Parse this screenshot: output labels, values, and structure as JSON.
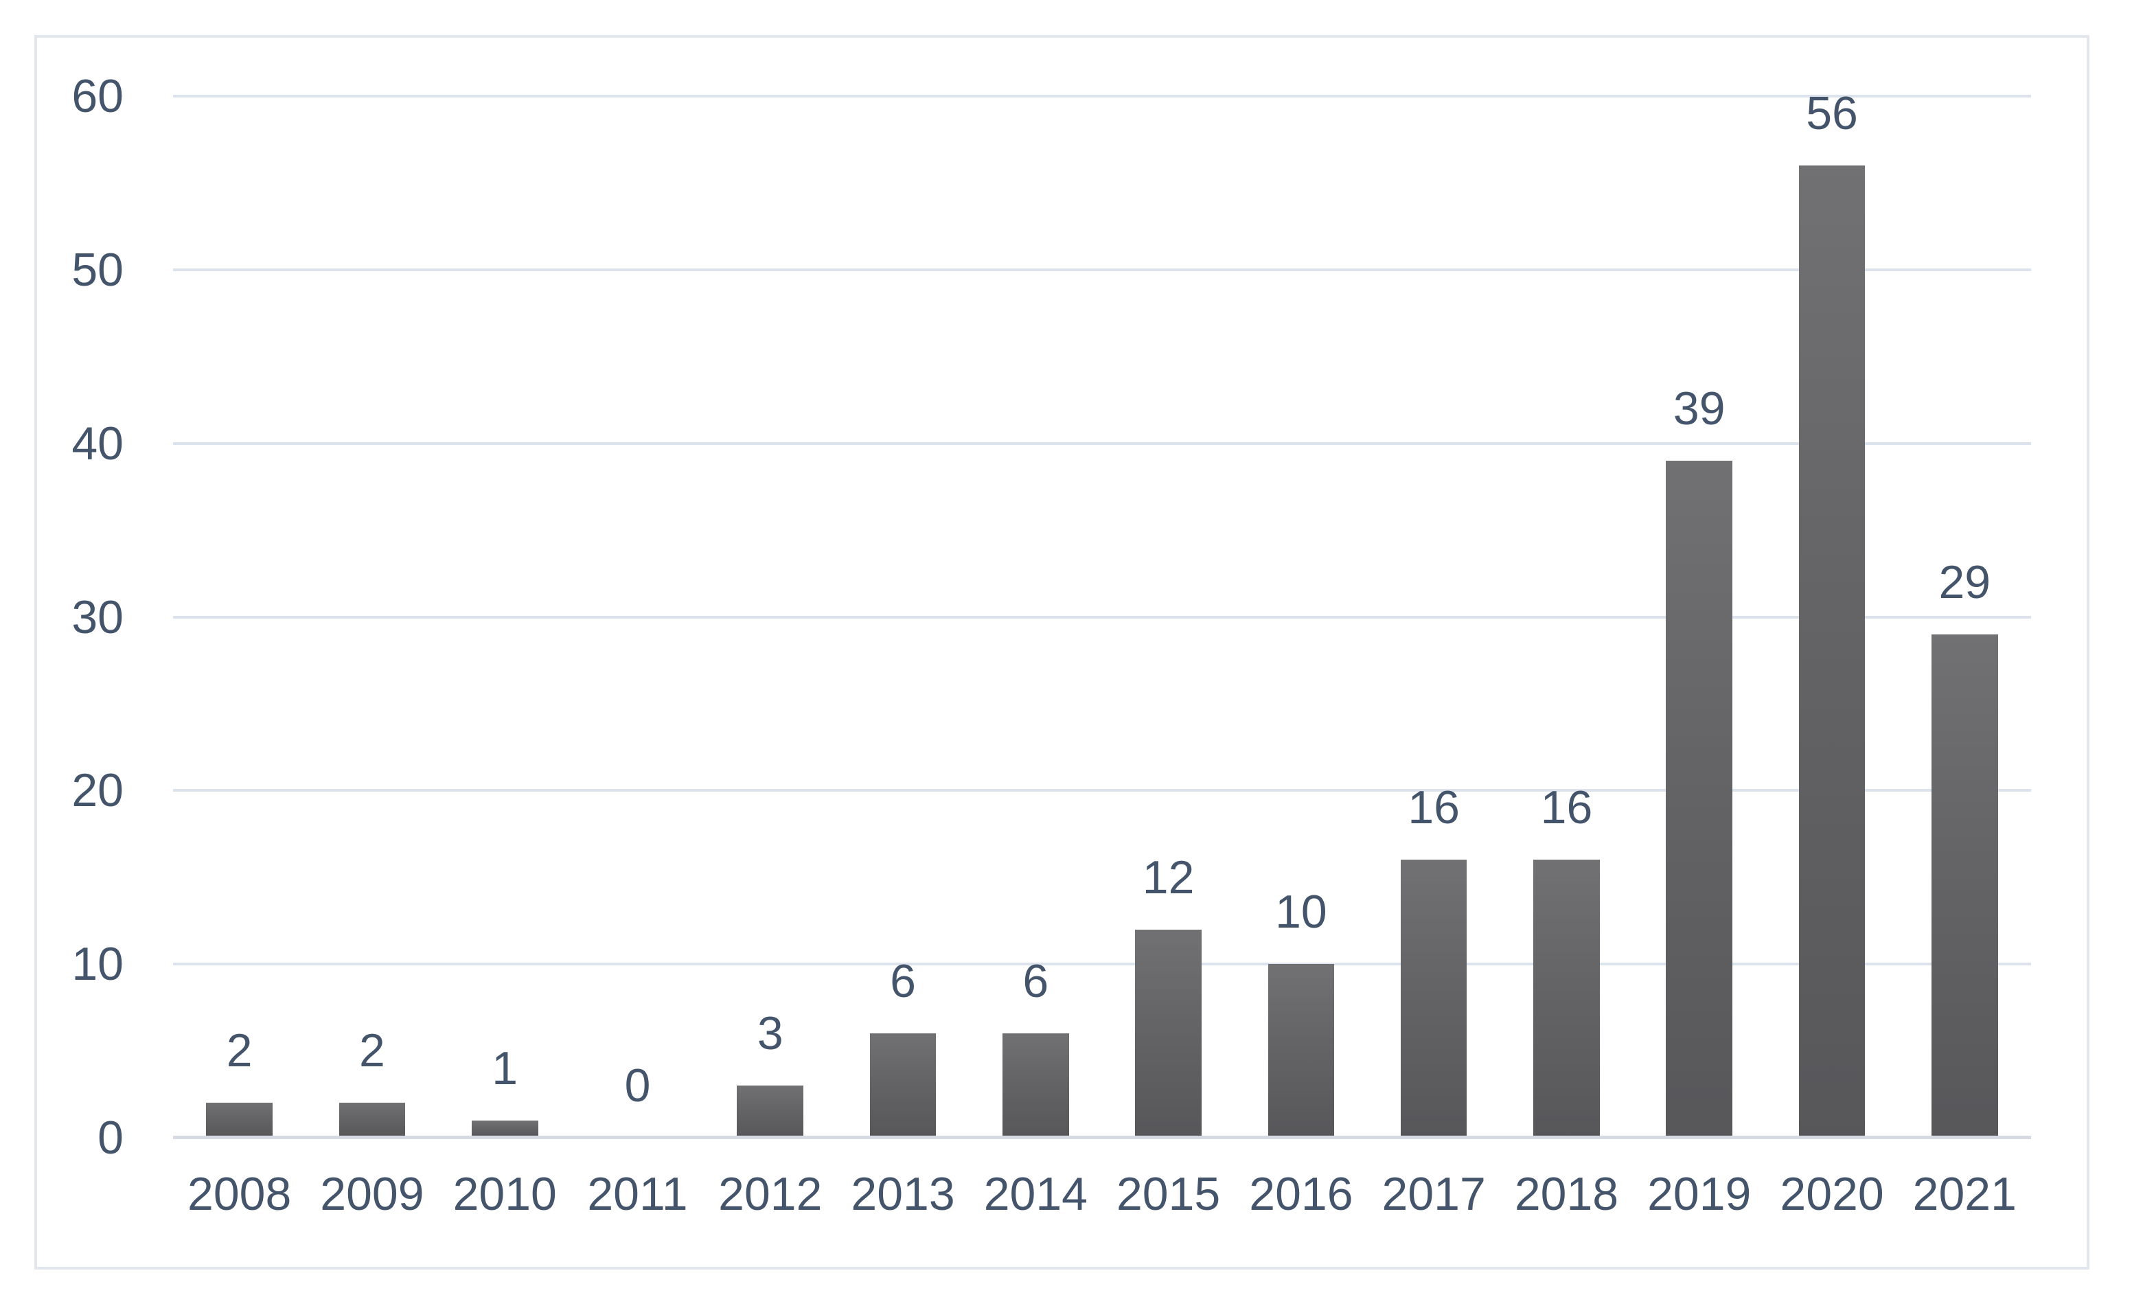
{
  "chart_data": {
    "type": "bar",
    "categories": [
      "2008",
      "2009",
      "2010",
      "2011",
      "2012",
      "2013",
      "2014",
      "2015",
      "2016",
      "2017",
      "2018",
      "2019",
      "2020",
      "2021"
    ],
    "values": [
      2,
      2,
      1,
      0,
      3,
      6,
      6,
      12,
      10,
      16,
      16,
      39,
      56,
      29
    ],
    "data_labels": [
      2,
      2,
      1,
      0,
      3,
      6,
      6,
      12,
      10,
      16,
      16,
      39,
      56,
      29
    ],
    "ylim": [
      0,
      60
    ],
    "yticks": [
      0,
      10,
      20,
      30,
      40,
      50,
      60
    ],
    "grid": "horizontal",
    "legend": "none",
    "bar_width_fraction": 0.5,
    "colors": {
      "bar_gradient_top": "#717173",
      "bar_gradient_bottom": "#57575a",
      "label_text": "#44546a",
      "gridline": "#dde3ec",
      "axis_line": "#d5dae3",
      "frame_border": "#e2e6ed",
      "background": "#ffffff"
    }
  }
}
